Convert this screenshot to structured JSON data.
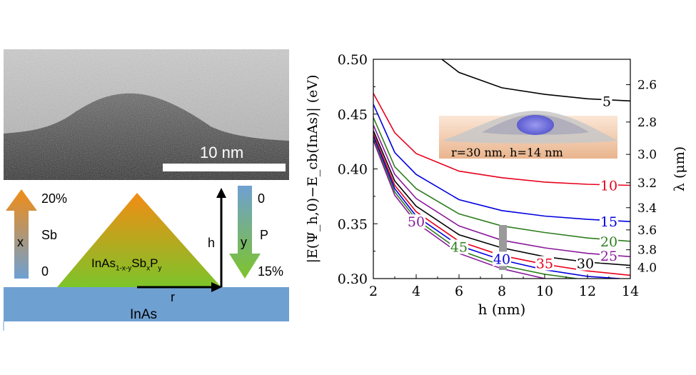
{
  "tem": {
    "scale_label": "10 nm"
  },
  "diagram": {
    "x_top": "20%",
    "x_bottom": "0",
    "x_symbol": "x",
    "x_element": "Sb",
    "y_top": "0",
    "y_bottom": "15%",
    "y_symbol": "y",
    "y_element": "P",
    "h_label": "h",
    "r_label": "r",
    "dot_formula": {
      "a": "InAs",
      "b": "1-x-y",
      "c": "Sb",
      "d": "x",
      "e": "P",
      "f": "y"
    },
    "substrate_label": "InAs",
    "colors": {
      "orange": "#f28c14",
      "green": "#7dc42a",
      "blue": "#6fa0d2"
    }
  },
  "chart_data": {
    "type": "line",
    "xlabel": "h (nm)",
    "ylabel_left": "|E(Ψ_h,0)−E_cb(InAs)| (eV)",
    "ylabel_right": "λ (μm)",
    "xlim": [
      2,
      14
    ],
    "ylim": [
      0.3,
      0.5
    ],
    "xticks": [
      "2",
      "4",
      "6",
      "8",
      "10",
      "12",
      "14"
    ],
    "yticks": [
      "0.30",
      "0.35",
      "0.40",
      "0.45",
      "0.50"
    ],
    "right_ticks": [
      "2.6",
      "2.8",
      "3.0",
      "3.2",
      "3.4",
      "3.6",
      "3.8",
      "4.0"
    ],
    "inset_label": "r=30 nm, h=14 nm",
    "series": [
      {
        "name": "5",
        "color": "#000000",
        "x": [
          5.2,
          6,
          8,
          10,
          12,
          14
        ],
        "y": [
          0.5,
          0.488,
          0.474,
          0.468,
          0.464,
          0.462
        ]
      },
      {
        "name": "10",
        "color": "#e8001c",
        "x": [
          2,
          3,
          4,
          6,
          8,
          10,
          12,
          14
        ],
        "y": [
          0.469,
          0.433,
          0.414,
          0.398,
          0.392,
          0.388,
          0.386,
          0.385
        ]
      },
      {
        "name": "15",
        "color": "#0000e0",
        "x": [
          2,
          3,
          4,
          6,
          8,
          10,
          12,
          14
        ],
        "y": [
          0.459,
          0.415,
          0.395,
          0.372,
          0.362,
          0.357,
          0.354,
          0.352
        ]
      },
      {
        "name": "20",
        "color": "#2e7d1e",
        "x": [
          2,
          3,
          4,
          6,
          8,
          10,
          12,
          14
        ],
        "y": [
          0.447,
          0.402,
          0.382,
          0.359,
          0.348,
          0.342,
          0.337,
          0.334
        ]
      },
      {
        "name": "25",
        "color": "#8a1a9b",
        "x": [
          2,
          3,
          4,
          6,
          8,
          10,
          12,
          14
        ],
        "y": [
          0.44,
          0.395,
          0.373,
          0.348,
          0.335,
          0.328,
          0.323,
          0.32
        ]
      },
      {
        "name": "30",
        "color": "#000000",
        "x": [
          2,
          3,
          4,
          6,
          8,
          10,
          12,
          14
        ],
        "y": [
          0.435,
          0.389,
          0.366,
          0.34,
          0.328,
          0.32,
          0.315,
          0.312
        ]
      },
      {
        "name": "35",
        "color": "#e8001c",
        "x": [
          2,
          3,
          4,
          6,
          8,
          10,
          12,
          14
        ],
        "y": [
          0.432,
          0.385,
          0.361,
          0.334,
          0.321,
          0.313,
          0.307,
          0.303
        ]
      },
      {
        "name": "40",
        "color": "#0000e0",
        "x": [
          2,
          3,
          4,
          6,
          8,
          10,
          12,
          13.5
        ],
        "y": [
          0.43,
          0.382,
          0.357,
          0.33,
          0.317,
          0.308,
          0.302,
          0.3
        ]
      },
      {
        "name": "45",
        "color": "#2e7d1e",
        "x": [
          2,
          3,
          4,
          6,
          8,
          10,
          11.5
        ],
        "y": [
          0.428,
          0.379,
          0.354,
          0.326,
          0.312,
          0.304,
          0.3
        ]
      },
      {
        "name": "50",
        "color": "#8a1a9b",
        "x": [
          2,
          3,
          4,
          6,
          8,
          10
        ],
        "y": [
          0.426,
          0.376,
          0.351,
          0.323,
          0.309,
          0.3
        ]
      }
    ],
    "labels": [
      {
        "text": "5",
        "x": 12.9,
        "y": 0.462,
        "color": "#000000"
      },
      {
        "text": "10",
        "x": 13.0,
        "y": 0.385,
        "color": "#e8001c"
      },
      {
        "text": "15",
        "x": 13.0,
        "y": 0.352,
        "color": "#0000e0"
      },
      {
        "text": "20",
        "x": 13.0,
        "y": 0.334,
        "color": "#2e7d1e"
      },
      {
        "text": "25",
        "x": 13.0,
        "y": 0.321,
        "color": "#8a1a9b"
      },
      {
        "text": "30",
        "x": 11.9,
        "y": 0.314,
        "color": "#000000"
      },
      {
        "text": "35",
        "x": 10.0,
        "y": 0.314,
        "color": "#e8001c"
      },
      {
        "text": "40",
        "x": 8.0,
        "y": 0.318,
        "color": "#0000e0"
      },
      {
        "text": "45",
        "x": 6.0,
        "y": 0.329,
        "color": "#2e7d1e"
      },
      {
        "text": "50",
        "x": 4.0,
        "y": 0.352,
        "color": "#8a1a9b"
      }
    ]
  }
}
